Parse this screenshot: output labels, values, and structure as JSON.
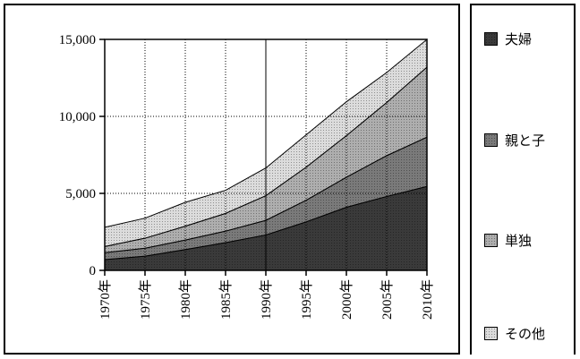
{
  "chart_data": {
    "type": "area",
    "stacked": true,
    "x": [
      "1970年",
      "1975年",
      "1980年",
      "1985年",
      "1990年",
      "1995年",
      "2000年",
      "2005年",
      "2010年"
    ],
    "series": [
      {
        "name": "夫婦",
        "values": [
          700,
          920,
          1350,
          1800,
          2300,
          3150,
          4100,
          4800,
          5450
        ],
        "color": "#3a3a3a"
      },
      {
        "name": "親と子",
        "values": [
          450,
          520,
          620,
          750,
          950,
          1400,
          1950,
          2650,
          3200
        ],
        "color": "#7a7a7a"
      },
      {
        "name": "単独",
        "values": [
          400,
          650,
          900,
          1150,
          1600,
          2150,
          2700,
          3450,
          4550
        ],
        "color": "#aeaeae"
      },
      {
        "name": "その他",
        "values": [
          1250,
          1300,
          1550,
          1500,
          1800,
          2100,
          2200,
          1950,
          1800
        ],
        "color": "#dcdcdc"
      }
    ],
    "ylim": [
      0,
      15000
    ],
    "yticks": [
      0,
      5000,
      10000,
      15000
    ],
    "ytick_labels": [
      "0",
      "5,000",
      "10,000",
      "15,000"
    ],
    "grid": true,
    "legend_position": "right",
    "title": "",
    "xlabel": "",
    "ylabel": ""
  }
}
